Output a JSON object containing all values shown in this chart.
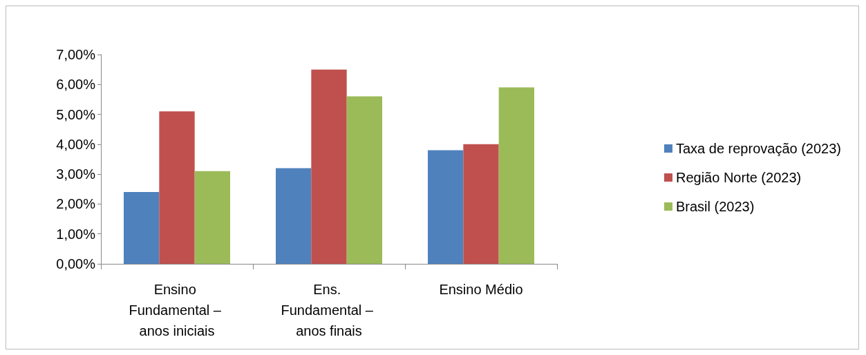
{
  "chart_data": {
    "type": "bar",
    "categories": [
      "Ensino Fundamental – anos iniciais",
      "Ens. Fundamental – anos finais",
      "Ensino Médio"
    ],
    "series": [
      {
        "name": "Taxa de reprovação (2023)",
        "color": "#4f81bd",
        "values": [
          2.4,
          3.2,
          3.8
        ]
      },
      {
        "name": "Região Norte (2023)",
        "color": "#c0504d",
        "values": [
          5.1,
          6.5,
          4.0
        ]
      },
      {
        "name": "Brasil (2023)",
        "color": "#9bbb59",
        "values": [
          3.1,
          5.6,
          5.9
        ]
      }
    ],
    "ylim": [
      0,
      7
    ],
    "yticks": [
      {
        "value": 0,
        "label": "0,00%"
      },
      {
        "value": 1,
        "label": "1,00%"
      },
      {
        "value": 2,
        "label": "2,00%"
      },
      {
        "value": 3,
        "label": "3,00%"
      },
      {
        "value": 4,
        "label": "4,00%"
      },
      {
        "value": 5,
        "label": "5,00%"
      },
      {
        "value": 6,
        "label": "6,00%"
      },
      {
        "value": 7,
        "label": "7,00%"
      }
    ],
    "grid": false,
    "legend": "right"
  }
}
